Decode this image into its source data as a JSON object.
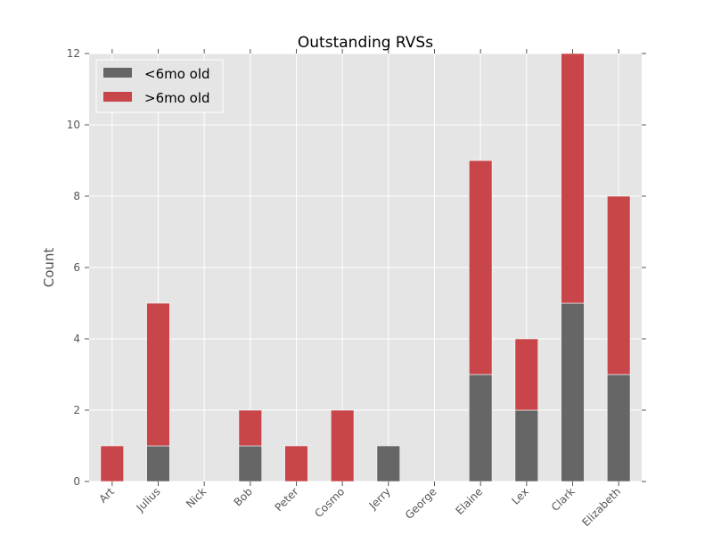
{
  "chart_data": {
    "type": "bar",
    "stacked": true,
    "title": "Outstanding RVSs",
    "xlabel": "",
    "ylabel": "Count",
    "ylim": [
      0,
      12
    ],
    "yticks": [
      "0",
      "2",
      "4",
      "6",
      "8",
      "10",
      "12"
    ],
    "grid": true,
    "legend_position": "top-left",
    "categories": [
      "Art",
      "Julius",
      "Nick",
      "Bob",
      "Peter",
      "Cosmo",
      "Jerry",
      "George",
      "Elaine",
      "Lex",
      "Clark",
      "Elizabeth"
    ],
    "series": [
      {
        "name": "<6mo old",
        "color": "#666666",
        "values": [
          0,
          1,
          0,
          1,
          0,
          0,
          1,
          0,
          3,
          2,
          5,
          3
        ]
      },
      {
        "name": ">6mo old",
        "color": "#c8464a",
        "values": [
          1,
          4,
          0,
          1,
          1,
          2,
          0,
          0,
          6,
          2,
          7,
          5
        ]
      }
    ]
  }
}
